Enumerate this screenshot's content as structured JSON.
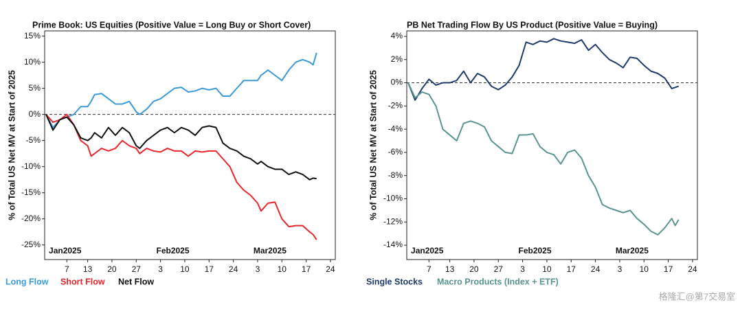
{
  "chart_data": [
    {
      "type": "line",
      "title": "Prime Book: US Equities (Positive Value = Long Buy or Short Cover)",
      "ylabel": "% of Total US Net MV at Start of 2025",
      "x": [
        0,
        2,
        4,
        6,
        8,
        10,
        12,
        13,
        14,
        16,
        18,
        20,
        22,
        24,
        26,
        27,
        29,
        31,
        33,
        35,
        37,
        39,
        41,
        43,
        45,
        47,
        49,
        51,
        53,
        55,
        57,
        59,
        61,
        62,
        64,
        66,
        68,
        70,
        72,
        74,
        76,
        77,
        78
      ],
      "series": [
        {
          "name": "Long Flow",
          "color": "#3a9ad9",
          "values": [
            0,
            -2.5,
            -1,
            -0.5,
            0,
            1.5,
            1.5,
            2.5,
            3.8,
            4,
            3,
            2,
            2,
            2.5,
            0.5,
            0,
            1,
            2.5,
            3,
            4,
            5,
            5.2,
            4.3,
            4.5,
            5,
            4.7,
            5,
            3.5,
            3.5,
            5,
            6.5,
            6.5,
            6.5,
            7.5,
            8.5,
            7.5,
            6.5,
            8.5,
            10,
            10.5,
            10,
            9.5,
            11.8
          ]
        },
        {
          "name": "Short Flow",
          "color": "#e8262b",
          "values": [
            0,
            -1.5,
            -1,
            0,
            -2,
            -5,
            -6,
            -8,
            -7.5,
            -6.5,
            -7,
            -6.5,
            -5,
            -6,
            -6.5,
            -7.5,
            -6.5,
            -7,
            -7.2,
            -6.5,
            -7,
            -7,
            -8,
            -7,
            -7.2,
            -7,
            -7,
            -8.5,
            -10,
            -13,
            -14.5,
            -15.5,
            -17,
            -18.5,
            -17,
            -16.8,
            -20,
            -21.5,
            -21.3,
            -21.3,
            -22.5,
            -23,
            -24
          ]
        },
        {
          "name": "Net Flow",
          "color": "#111111",
          "values": [
            0,
            -3,
            -1,
            -0.5,
            -2,
            -4.5,
            -5,
            -4.5,
            -3.5,
            -4.5,
            -2.5,
            -4,
            -2.5,
            -3.5,
            -6,
            -6.5,
            -5,
            -4,
            -3,
            -2.5,
            -3.5,
            -2.5,
            -3,
            -4,
            -2.5,
            -2.2,
            -2.5,
            -5.5,
            -6.5,
            -7,
            -8,
            -8.5,
            -9.5,
            -9,
            -10,
            -10.5,
            -10.5,
            -11.5,
            -11,
            -11.5,
            -12.5,
            -12.2,
            -12.3
          ]
        }
      ],
      "xlim": [
        -0.4,
        83.4
      ],
      "xticks": [
        {
          "value": 6,
          "label": "7"
        },
        {
          "value": 12,
          "label": "13"
        },
        {
          "value": 19,
          "label": "20"
        },
        {
          "value": 26,
          "label": "27"
        },
        {
          "value": 33,
          "label": "3"
        },
        {
          "value": 40,
          "label": "10"
        },
        {
          "value": 47,
          "label": "17"
        },
        {
          "value": 54,
          "label": "24"
        },
        {
          "value": 61,
          "label": "3"
        },
        {
          "value": 68,
          "label": "10"
        },
        {
          "value": 75,
          "label": "17"
        },
        {
          "value": 82,
          "label": "24"
        }
      ],
      "month_labels": [
        {
          "value": 0,
          "label": "Jan2025"
        },
        {
          "value": 31,
          "label": "Feb2025"
        },
        {
          "value": 59,
          "label": "Mar2025"
        }
      ],
      "ylim": [
        -27.8,
        16
      ],
      "yticks": [
        {
          "value": 15,
          "label": "15%"
        },
        {
          "value": 10,
          "label": "10%"
        },
        {
          "value": 5,
          "label": "5%"
        },
        {
          "value": 0,
          "label": "0%"
        },
        {
          "value": -5,
          "label": "-5%"
        },
        {
          "value": -10,
          "label": "-10%"
        },
        {
          "value": -15,
          "label": "-15%"
        },
        {
          "value": -20,
          "label": "-20%"
        },
        {
          "value": -25,
          "label": "-25%"
        }
      ],
      "zero_line": true,
      "legend": "bottom"
    },
    {
      "type": "line",
      "title": "PB Net Trading Flow By US Product (Positive Value = Buying)",
      "ylabel": "% of Total US Net MV at Start of 2025",
      "x": [
        0,
        2,
        4,
        6,
        8,
        10,
        12,
        14,
        16,
        18,
        20,
        22,
        24,
        26,
        28,
        30,
        32,
        34,
        36,
        38,
        40,
        42,
        44,
        46,
        48,
        50,
        52,
        54,
        56,
        58,
        60,
        62,
        64,
        66,
        68,
        70,
        72,
        74,
        76,
        77,
        78
      ],
      "series": [
        {
          "name": "Single Stocks",
          "color": "#1f3a6e",
          "values": [
            0,
            -1.5,
            -0.5,
            0.3,
            -0.2,
            0,
            0,
            0.2,
            1,
            0,
            0.8,
            0.5,
            -0.3,
            -0.6,
            -0.2,
            0.5,
            1.5,
            3.5,
            3.3,
            3.6,
            3.5,
            3.8,
            3.6,
            3.5,
            3.4,
            3.7,
            2.8,
            3.3,
            2.6,
            2,
            1.7,
            1.3,
            2.2,
            2.1,
            1.5,
            1,
            0.8,
            0.4,
            -0.5,
            -0.4,
            -0.3
          ]
        },
        {
          "name": "Macro Products (Index + ETF)",
          "color": "#5a9490",
          "values": [
            0,
            -1.3,
            -0.8,
            -1,
            -2,
            -4,
            -4.5,
            -5,
            -3.5,
            -3.3,
            -3.5,
            -3.8,
            -5,
            -5.5,
            -6,
            -6.1,
            -4.5,
            -4.5,
            -4.4,
            -5.5,
            -6,
            -6.2,
            -7,
            -6,
            -5.8,
            -6.5,
            -8,
            -9,
            -10.5,
            -10.8,
            -11,
            -11.2,
            -11,
            -11.7,
            -12.2,
            -12.8,
            -13.1,
            -12.5,
            -11.7,
            -12.3,
            -11.8
          ]
        }
      ],
      "xlim": [
        -0.4,
        83.4
      ],
      "xticks": [
        {
          "value": 6,
          "label": "7"
        },
        {
          "value": 12,
          "label": "13"
        },
        {
          "value": 19,
          "label": "20"
        },
        {
          "value": 26,
          "label": "27"
        },
        {
          "value": 33,
          "label": "3"
        },
        {
          "value": 40,
          "label": "10"
        },
        {
          "value": 47,
          "label": "17"
        },
        {
          "value": 54,
          "label": "24"
        },
        {
          "value": 61,
          "label": "3"
        },
        {
          "value": 68,
          "label": "10"
        },
        {
          "value": 75,
          "label": "17"
        },
        {
          "value": 82,
          "label": "24"
        }
      ],
      "month_labels": [
        {
          "value": 0,
          "label": "Jan2025"
        },
        {
          "value": 31,
          "label": "Feb2025"
        },
        {
          "value": 59,
          "label": "Mar2025"
        }
      ],
      "ylim": [
        -15.24,
        4.47
      ],
      "yticks": [
        {
          "value": 4,
          "label": "4%"
        },
        {
          "value": 2,
          "label": "2%"
        },
        {
          "value": 0,
          "label": "0%"
        },
        {
          "value": -2,
          "label": "-2%"
        },
        {
          "value": -4,
          "label": "-4%"
        },
        {
          "value": -6,
          "label": "-6%"
        },
        {
          "value": -8,
          "label": "-8%"
        },
        {
          "value": -10,
          "label": "-10%"
        },
        {
          "value": -12,
          "label": "-12%"
        },
        {
          "value": -14,
          "label": "-14%"
        }
      ],
      "zero_line": true,
      "legend": "bottom"
    }
  ],
  "watermark": "格隆汇@第7交易室"
}
